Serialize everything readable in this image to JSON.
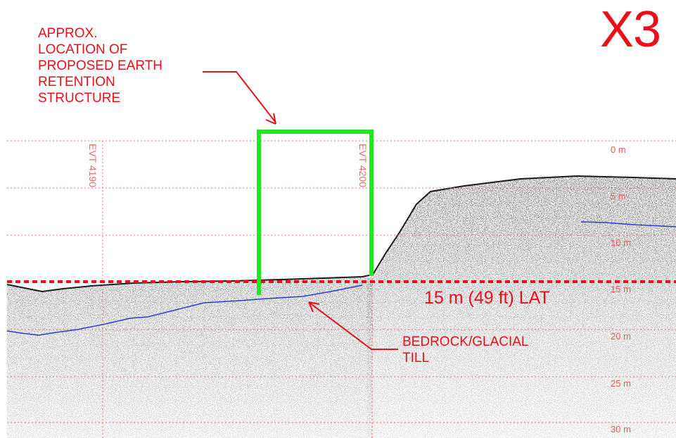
{
  "panel_id": "X3",
  "annotations": {
    "structure_note": "APPROX.\nLOCATION OF\nPROPOSED EARTH\nRETENTION\nSTRUCTURE",
    "till_note": "BEDROCK/GLACIAL\nTILL",
    "lat_label": "15 m (49 ft) LAT"
  },
  "event_marks": [
    "EVT 4190",
    "EVT 4200"
  ],
  "depth_scale": {
    "unit": "m",
    "labels": [
      "0 m",
      "5 m",
      "10 m",
      "15 m",
      "20 m",
      "25 m",
      "30 m"
    ]
  },
  "colors": {
    "annotation_red": "#e8101a",
    "grid_red": "#f07070",
    "structure_green": "#1ee81e",
    "till_line_blue": "#2a3ad8",
    "seabed_dark": "#1a1a1a"
  }
}
